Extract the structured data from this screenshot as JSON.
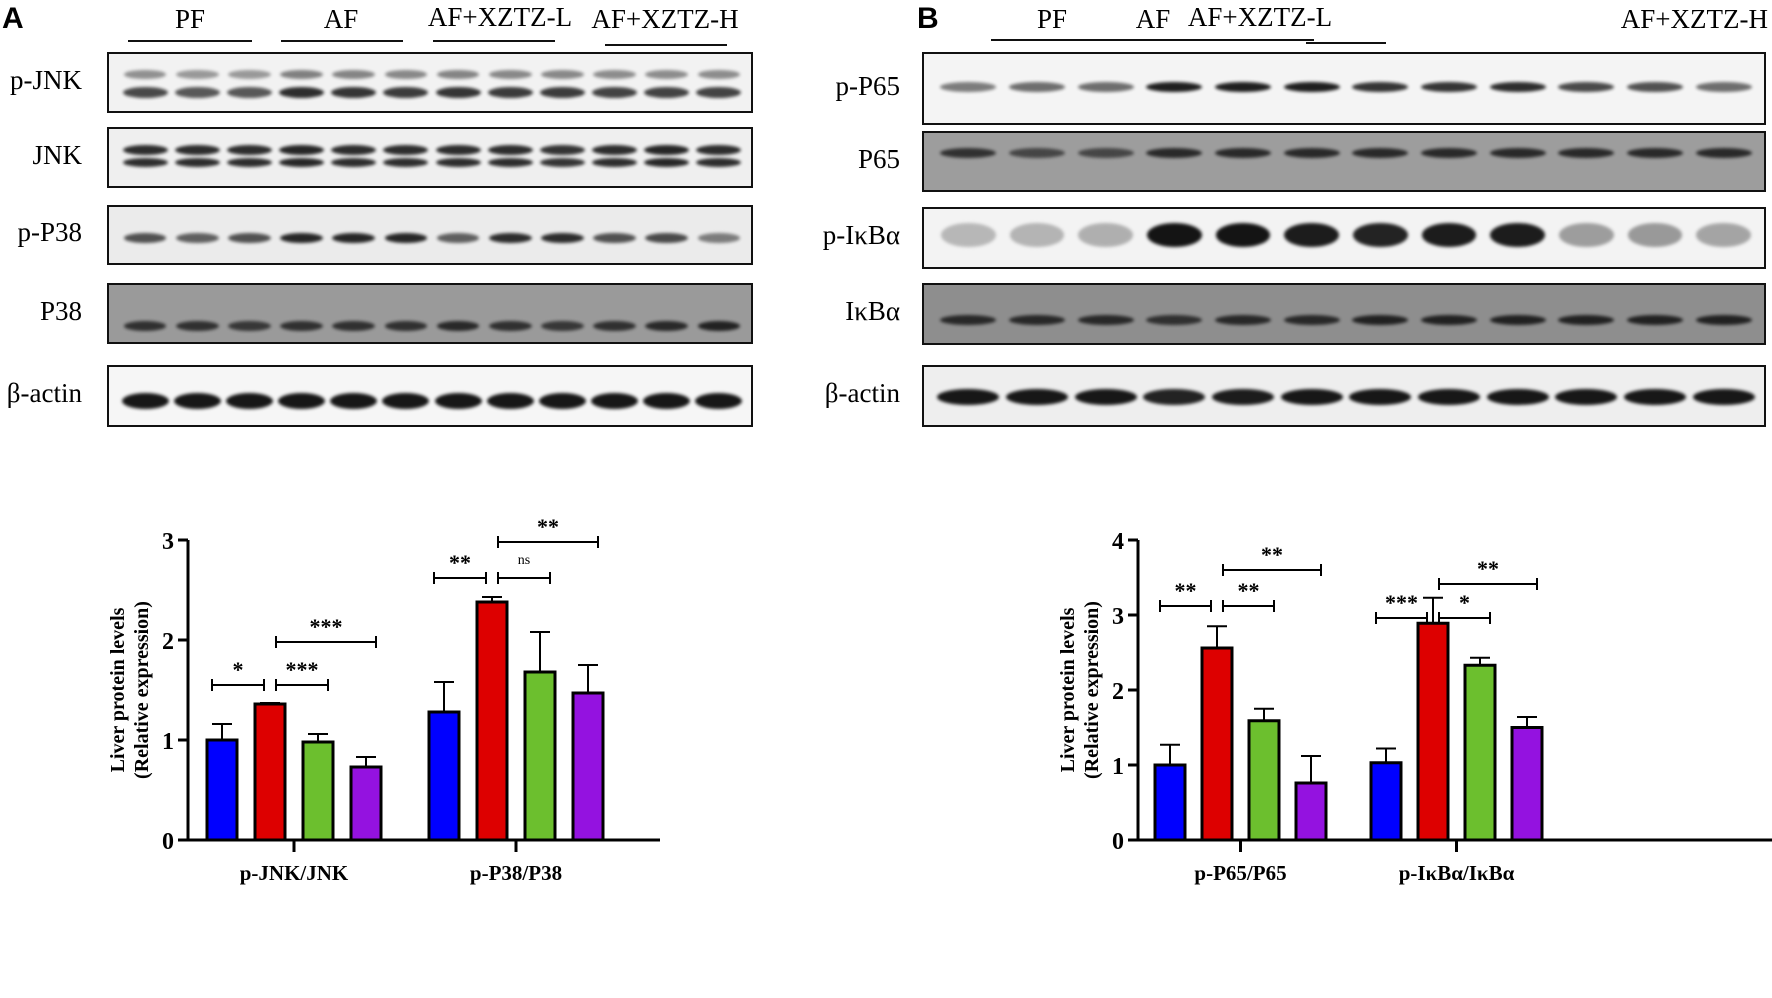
{
  "panels": {
    "A": {
      "letter": "A"
    },
    "B": {
      "letter": "B"
    }
  },
  "groups": [
    "PF",
    "AF",
    "AF+XZTZ-L",
    "AF+XZTZ-H"
  ],
  "blots": {
    "A": [
      {
        "label": "p-JNK",
        "bg": "#f2f2f2",
        "bands": "double"
      },
      {
        "label": "JNK",
        "bg": "#efefef",
        "bands": "double-strong"
      },
      {
        "label": "p-P38",
        "bg": "#ebebeb",
        "bands": "single"
      },
      {
        "label": "P38",
        "bg": "#9a9a9a",
        "bands": "single"
      },
      {
        "label": "β-actin",
        "bg": "#f6f6f6",
        "bands": "thick"
      }
    ],
    "B": [
      {
        "label": "p-P65",
        "bg": "#f4f4f4",
        "bands": "single"
      },
      {
        "label": "P65",
        "bg": "#9d9d9d",
        "bands": "single"
      },
      {
        "label": "p-IκBα",
        "bg": "#f3f3f3",
        "bands": "blob"
      },
      {
        "label": "IκBα",
        "bg": "#8e8e8e",
        "bands": "single"
      },
      {
        "label": "β-actin",
        "bg": "#eeeeee",
        "bands": "thick"
      }
    ]
  },
  "colors": {
    "PF": "#0000ff",
    "AF": "#dd0000",
    "AF+XZTZ-L": "#6cbf2e",
    "AF+XZTZ-H": "#9412e0"
  },
  "chart_data": [
    {
      "type": "bar",
      "title": "",
      "ylabel": "Liver protein levels (Relative expression)",
      "xlabel": "",
      "ylim": [
        0,
        3
      ],
      "yticks": [
        0,
        1,
        2,
        3
      ],
      "categories": [
        "p-JNK/JNK",
        "p-P38/P38"
      ],
      "series": [
        {
          "name": "PF",
          "values": [
            1.0,
            1.28
          ],
          "errors": [
            0.16,
            0.3
          ]
        },
        {
          "name": "AF",
          "values": [
            1.36,
            2.38
          ],
          "errors": [
            0.01,
            0.05
          ]
        },
        {
          "name": "AF+XZTZ-L",
          "values": [
            0.98,
            1.68
          ],
          "errors": [
            0.08,
            0.4
          ]
        },
        {
          "name": "AF+XZTZ-H",
          "values": [
            0.73,
            1.47
          ],
          "errors": [
            0.1,
            0.28
          ]
        }
      ],
      "annotations": [
        {
          "category": "p-JNK/JNK",
          "pair": [
            "PF",
            "AF"
          ],
          "label": "*"
        },
        {
          "category": "p-JNK/JNK",
          "pair": [
            "AF",
            "AF+XZTZ-L"
          ],
          "label": "***"
        },
        {
          "category": "p-JNK/JNK",
          "pair": [
            "AF",
            "AF+XZTZ-H"
          ],
          "label": "***"
        },
        {
          "category": "p-P38/P38",
          "pair": [
            "PF",
            "AF"
          ],
          "label": "**"
        },
        {
          "category": "p-P38/P38",
          "pair": [
            "AF",
            "AF+XZTZ-L"
          ],
          "label": "ns"
        },
        {
          "category": "p-P38/P38",
          "pair": [
            "AF",
            "AF+XZTZ-H"
          ],
          "label": "**"
        }
      ],
      "grid": false,
      "legend": "none"
    },
    {
      "type": "bar",
      "title": "",
      "ylabel": "Liver protein levels (Relative expression)",
      "xlabel": "",
      "ylim": [
        0,
        4
      ],
      "yticks": [
        0,
        1,
        2,
        3,
        4
      ],
      "categories": [
        "p-P65/P65",
        "p-IκBα/IκBα"
      ],
      "series": [
        {
          "name": "PF",
          "values": [
            1.0,
            1.03
          ],
          "errors": [
            0.27,
            0.19
          ]
        },
        {
          "name": "AF",
          "values": [
            2.56,
            2.89
          ],
          "errors": [
            0.29,
            0.34
          ]
        },
        {
          "name": "AF+XZTZ-L",
          "values": [
            1.59,
            2.33
          ],
          "errors": [
            0.16,
            0.1
          ]
        },
        {
          "name": "AF+XZTZ-H",
          "values": [
            0.76,
            1.5
          ],
          "errors": [
            0.36,
            0.14
          ]
        }
      ],
      "annotations": [
        {
          "category": "p-P65/P65",
          "pair": [
            "PF",
            "AF"
          ],
          "label": "**"
        },
        {
          "category": "p-P65/P65",
          "pair": [
            "AF",
            "AF+XZTZ-L"
          ],
          "label": "**"
        },
        {
          "category": "p-P65/P65",
          "pair": [
            "AF",
            "AF+XZTZ-H"
          ],
          "label": "**"
        },
        {
          "category": "p-IκBα/IκBα",
          "pair": [
            "PF",
            "AF"
          ],
          "label": "***"
        },
        {
          "category": "p-IκBα/IκBα",
          "pair": [
            "AF",
            "AF+XZTZ-L"
          ],
          "label": "*"
        },
        {
          "category": "p-IκBα/IκBα",
          "pair": [
            "AF",
            "AF+XZTZ-H"
          ],
          "label": "**"
        }
      ],
      "grid": false,
      "legend": "none"
    }
  ]
}
